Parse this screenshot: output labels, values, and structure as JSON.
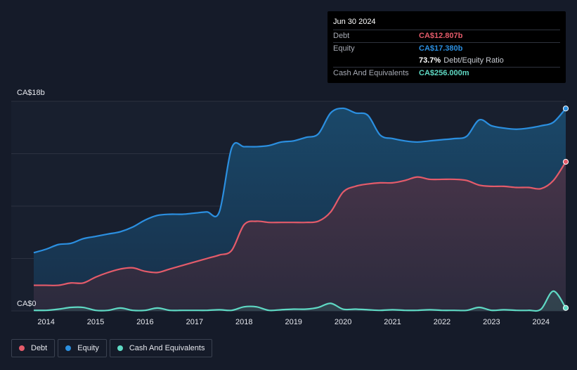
{
  "chart_data": {
    "type": "area",
    "title": "",
    "y_label_top": "CA$18b",
    "y_label_bottom": "CA$0",
    "ylim": [
      0,
      18
    ],
    "xlim": [
      2013.75,
      2024.5
    ],
    "x_ticks": [
      "2014",
      "2015",
      "2016",
      "2017",
      "2018",
      "2019",
      "2020",
      "2021",
      "2022",
      "2023",
      "2024"
    ],
    "x_tick_values": [
      2014,
      2015,
      2016,
      2017,
      2018,
      2019,
      2020,
      2021,
      2022,
      2023,
      2024
    ],
    "series": [
      {
        "name": "Equity",
        "color": "#2b8fe0",
        "x": [
          2013.75,
          2014.0,
          2014.25,
          2014.5,
          2014.75,
          2015.0,
          2015.25,
          2015.5,
          2015.75,
          2016.0,
          2016.25,
          2016.5,
          2016.75,
          2017.0,
          2017.25,
          2017.5,
          2017.75,
          2018.0,
          2018.25,
          2018.5,
          2018.75,
          2019.0,
          2019.25,
          2019.5,
          2019.75,
          2020.0,
          2020.25,
          2020.5,
          2020.75,
          2021.0,
          2021.25,
          2021.5,
          2021.75,
          2022.0,
          2022.25,
          2022.5,
          2022.75,
          2023.0,
          2023.25,
          2023.5,
          2023.75,
          2024.0,
          2024.25,
          2024.5
        ],
        "values": [
          5.0,
          5.3,
          5.7,
          5.8,
          6.2,
          6.4,
          6.6,
          6.8,
          7.2,
          7.8,
          8.2,
          8.3,
          8.3,
          8.4,
          8.5,
          8.5,
          14.0,
          14.1,
          14.1,
          14.2,
          14.5,
          14.6,
          14.9,
          15.2,
          17.0,
          17.4,
          17.0,
          16.8,
          15.1,
          14.8,
          14.6,
          14.5,
          14.6,
          14.7,
          14.8,
          15.0,
          16.4,
          15.9,
          15.7,
          15.6,
          15.7,
          15.9,
          16.2,
          17.38
        ]
      },
      {
        "name": "Debt",
        "color": "#e45b6a",
        "x": [
          2013.75,
          2014.0,
          2014.25,
          2014.5,
          2014.75,
          2015.0,
          2015.25,
          2015.5,
          2015.75,
          2016.0,
          2016.25,
          2016.5,
          2016.75,
          2017.0,
          2017.25,
          2017.5,
          2017.75,
          2018.0,
          2018.25,
          2018.5,
          2018.75,
          2019.0,
          2019.25,
          2019.5,
          2019.75,
          2020.0,
          2020.25,
          2020.5,
          2020.75,
          2021.0,
          2021.25,
          2021.5,
          2021.75,
          2022.0,
          2022.25,
          2022.5,
          2022.75,
          2023.0,
          2023.25,
          2023.5,
          2023.75,
          2024.0,
          2024.25,
          2024.5
        ],
        "values": [
          2.2,
          2.2,
          2.2,
          2.4,
          2.4,
          2.9,
          3.3,
          3.6,
          3.7,
          3.4,
          3.3,
          3.6,
          3.9,
          4.2,
          4.5,
          4.8,
          5.2,
          7.4,
          7.7,
          7.6,
          7.6,
          7.6,
          7.6,
          7.7,
          8.5,
          10.2,
          10.7,
          10.9,
          11.0,
          11.0,
          11.2,
          11.5,
          11.3,
          11.3,
          11.3,
          11.2,
          10.8,
          10.7,
          10.7,
          10.6,
          10.6,
          10.5,
          11.2,
          12.807
        ]
      },
      {
        "name": "Cash And Equivalents",
        "color": "#5fd9c4",
        "x": [
          2013.75,
          2014.0,
          2014.25,
          2014.5,
          2014.75,
          2015.0,
          2015.25,
          2015.5,
          2015.75,
          2016.0,
          2016.25,
          2016.5,
          2016.75,
          2017.0,
          2017.25,
          2017.5,
          2017.75,
          2018.0,
          2018.25,
          2018.5,
          2018.75,
          2019.0,
          2019.25,
          2019.5,
          2019.75,
          2020.0,
          2020.25,
          2020.5,
          2020.75,
          2021.0,
          2021.25,
          2021.5,
          2021.75,
          2022.0,
          2022.25,
          2022.5,
          2022.75,
          2023.0,
          2023.25,
          2023.5,
          2023.75,
          2024.0,
          2024.25,
          2024.5
        ],
        "values": [
          0.05,
          0.05,
          0.15,
          0.3,
          0.3,
          0.05,
          0.05,
          0.25,
          0.05,
          0.05,
          0.25,
          0.05,
          0.05,
          0.05,
          0.05,
          0.1,
          0.05,
          0.35,
          0.35,
          0.05,
          0.1,
          0.15,
          0.15,
          0.3,
          0.65,
          0.15,
          0.15,
          0.1,
          0.05,
          0.1,
          0.05,
          0.05,
          0.1,
          0.05,
          0.05,
          0.05,
          0.3,
          0.05,
          0.1,
          0.05,
          0.05,
          0.15,
          1.7,
          0.256
        ]
      }
    ],
    "legend": [
      "Debt",
      "Equity",
      "Cash And Equivalents"
    ],
    "legend_position": "bottom-left",
    "grid": true
  },
  "tooltip": {
    "date": "Jun 30 2024",
    "rows": [
      {
        "label": "Debt",
        "value": "CA$12.807b",
        "color": "#e45b6a"
      },
      {
        "label": "Equity",
        "value": "CA$17.380b",
        "color": "#2b8fe0"
      },
      {
        "label": "Cash And Equivalents",
        "value": "CA$256.000m",
        "color": "#5fd9c4"
      }
    ],
    "ratio_pct": "73.7%",
    "ratio_text": "Debt/Equity Ratio"
  },
  "colors": {
    "background": "#151b29",
    "grid": "#2c3240"
  }
}
